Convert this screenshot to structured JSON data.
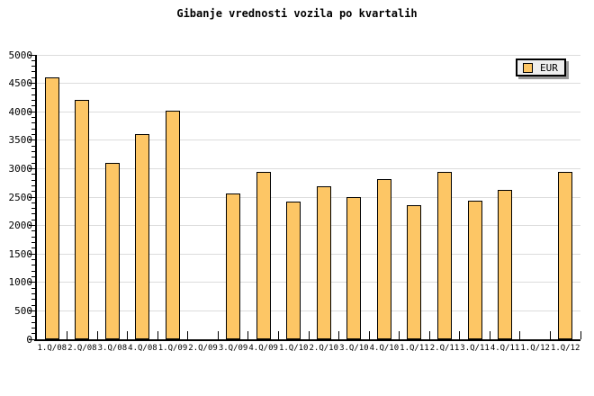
{
  "title": "Gibanje vrednosti vozila po kvartalih",
  "legend": {
    "label": "EUR"
  },
  "colors": {
    "background": "#ffffff",
    "bar_fill": "#fdc665",
    "bar_border": "#000000",
    "grid": "#dcdcdc",
    "axis": "#000000",
    "legend_bg": "#efefef",
    "legend_shadow": "#999999",
    "text": "#000000"
  },
  "chart_data": {
    "type": "bar",
    "title": "Gibanje vrednosti vozila po kvartalih",
    "xlabel": "",
    "ylabel": "",
    "categories": [
      "1.Q/08",
      "2.Q/08",
      "3.Q/08",
      "4.Q/08",
      "1.Q/09",
      "2.Q/09",
      "3.Q/09",
      "4.Q/09",
      "1.Q/10",
      "2.Q/10",
      "3.Q/10",
      "4.Q/10",
      "1.Q/11",
      "2.Q/11",
      "3.Q/11",
      "4.Q/11",
      "1.Q/12",
      "1.Q/12"
    ],
    "series": [
      {
        "name": "EUR",
        "values": [
          4600,
          4210,
          3100,
          3610,
          4020,
          null,
          2570,
          2950,
          2420,
          2690,
          2500,
          2810,
          2350,
          2950,
          2430,
          2620,
          null,
          2950
        ]
      }
    ],
    "ylim": [
      0,
      5000
    ],
    "ytick_step": 500,
    "ytick_minor_step": 100,
    "y_tick_labels": [
      "0",
      "500",
      "1000",
      "1500",
      "2000",
      "2500",
      "3000",
      "3500",
      "4000",
      "4500",
      "5000"
    ],
    "grid": "horizontal",
    "legend_position": "top-right"
  }
}
